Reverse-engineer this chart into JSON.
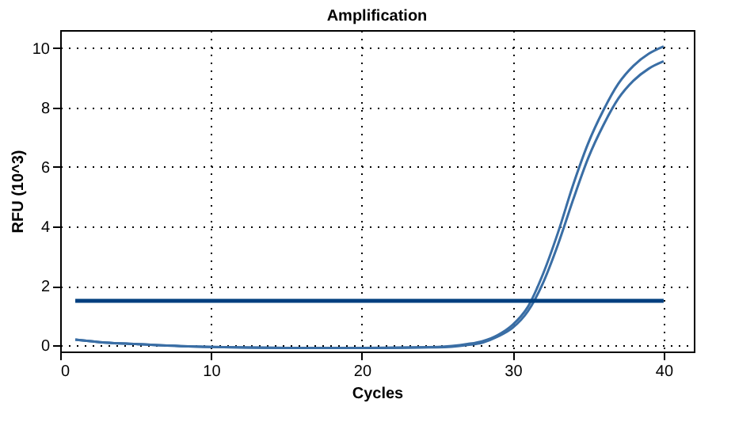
{
  "chart_data": {
    "type": "line",
    "title": "Amplification",
    "xlabel": "Cycles",
    "ylabel": "RFU (10^3)",
    "xlim": [
      0,
      42
    ],
    "xticks": [
      0,
      10,
      20,
      30,
      40
    ],
    "ylim": [
      -0.2,
      10.6
    ],
    "yticks": [
      0,
      2,
      4,
      6,
      8,
      10
    ],
    "grid": true,
    "x": [
      1,
      3,
      5,
      8,
      10,
      15,
      20,
      25,
      27,
      28,
      29,
      30,
      31,
      32,
      33,
      34,
      35,
      36,
      37,
      38,
      39,
      40
    ],
    "series": [
      {
        "color": "#3a6ea5",
        "values": [
          0.2,
          0.1,
          0.05,
          -0.02,
          -0.05,
          -0.08,
          -0.08,
          -0.05,
          0.05,
          0.15,
          0.35,
          0.7,
          1.3,
          2.4,
          3.8,
          5.4,
          6.8,
          7.9,
          8.8,
          9.4,
          9.8,
          10.05
        ]
      },
      {
        "color": "#3a6ea5",
        "values": [
          0.2,
          0.1,
          0.05,
          -0.02,
          -0.05,
          -0.08,
          -0.08,
          -0.06,
          0.02,
          0.1,
          0.3,
          0.6,
          1.15,
          2.1,
          3.4,
          4.9,
          6.3,
          7.4,
          8.3,
          8.9,
          9.3,
          9.55
        ]
      },
      {
        "color": "#003f7f",
        "x": [
          1,
          40
        ],
        "values": [
          1.5,
          1.5
        ]
      }
    ]
  }
}
